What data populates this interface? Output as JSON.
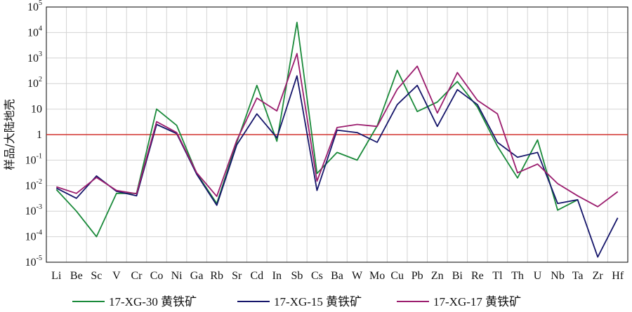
{
  "chart_data": {
    "type": "line",
    "title": "",
    "xlabel": "",
    "ylabel": "样品/大陆地壳",
    "yscale": "log",
    "ylim": [
      1e-05,
      100000.0
    ],
    "grid": true,
    "legend_position": "bottom",
    "reference_line": {
      "y": 1,
      "color": "#d0312d"
    },
    "categories": [
      "Li",
      "Be",
      "Sc",
      "V",
      "Cr",
      "Co",
      "Ni",
      "Ga",
      "Rb",
      "Sr",
      "Cd",
      "In",
      "Sb",
      "Cs",
      "Ba",
      "W",
      "Mo",
      "Cu",
      "Pb",
      "Zn",
      "Bi",
      "Re",
      "Tl",
      "Th",
      "U",
      "Nb",
      "Ta",
      "Zr",
      "Hf"
    ],
    "y_tick_labels": [
      {
        "base": "10",
        "exp": "5"
      },
      {
        "base": "10",
        "exp": "4"
      },
      {
        "base": "10",
        "exp": "3"
      },
      {
        "base": "10",
        "exp": "2"
      },
      {
        "base": "10",
        "exp": ""
      },
      {
        "base": "1",
        "exp": ""
      },
      {
        "base": "10",
        "exp": "-1"
      },
      {
        "base": "10",
        "exp": "-2"
      },
      {
        "base": "10",
        "exp": "-3"
      },
      {
        "base": "10",
        "exp": "-4"
      },
      {
        "base": "10",
        "exp": "-5"
      }
    ],
    "series": [
      {
        "name": "17-XG-30  黄铁矿",
        "color": "#1a8a3a",
        "values": [
          0.007,
          0.001,
          0.0001,
          0.005,
          0.005,
          10,
          2.3,
          0.03,
          0.002,
          0.5,
          85,
          0.55,
          25000,
          0.03,
          0.2,
          0.1,
          2.2,
          330,
          8,
          19,
          120,
          12,
          0.35,
          0.02,
          0.62,
          0.0011,
          0.0028,
          null,
          null
        ]
      },
      {
        "name": "17-XG-15  黄铁矿",
        "color": "#15156a",
        "values": [
          0.008,
          0.0032,
          0.024,
          0.006,
          0.004,
          2.5,
          1.1,
          0.028,
          0.0017,
          0.4,
          6.5,
          0.75,
          200,
          0.0065,
          1.5,
          1.2,
          0.5,
          15,
          85,
          2.1,
          58,
          15,
          0.5,
          0.13,
          0.2,
          0.002,
          0.0028,
          1.6e-05,
          0.00055
        ]
      },
      {
        "name": "17-XG-17  黄铁矿",
        "color": "#9b1d6e",
        "values": [
          0.009,
          0.005,
          0.021,
          0.0065,
          0.0048,
          3.2,
          1.2,
          0.032,
          0.0038,
          0.6,
          27,
          8.5,
          1500,
          0.015,
          1.9,
          2.5,
          2.1,
          60,
          480,
          7,
          270,
          22,
          6.5,
          0.032,
          0.07,
          0.012,
          0.004,
          0.0015,
          0.0058
        ]
      }
    ]
  }
}
